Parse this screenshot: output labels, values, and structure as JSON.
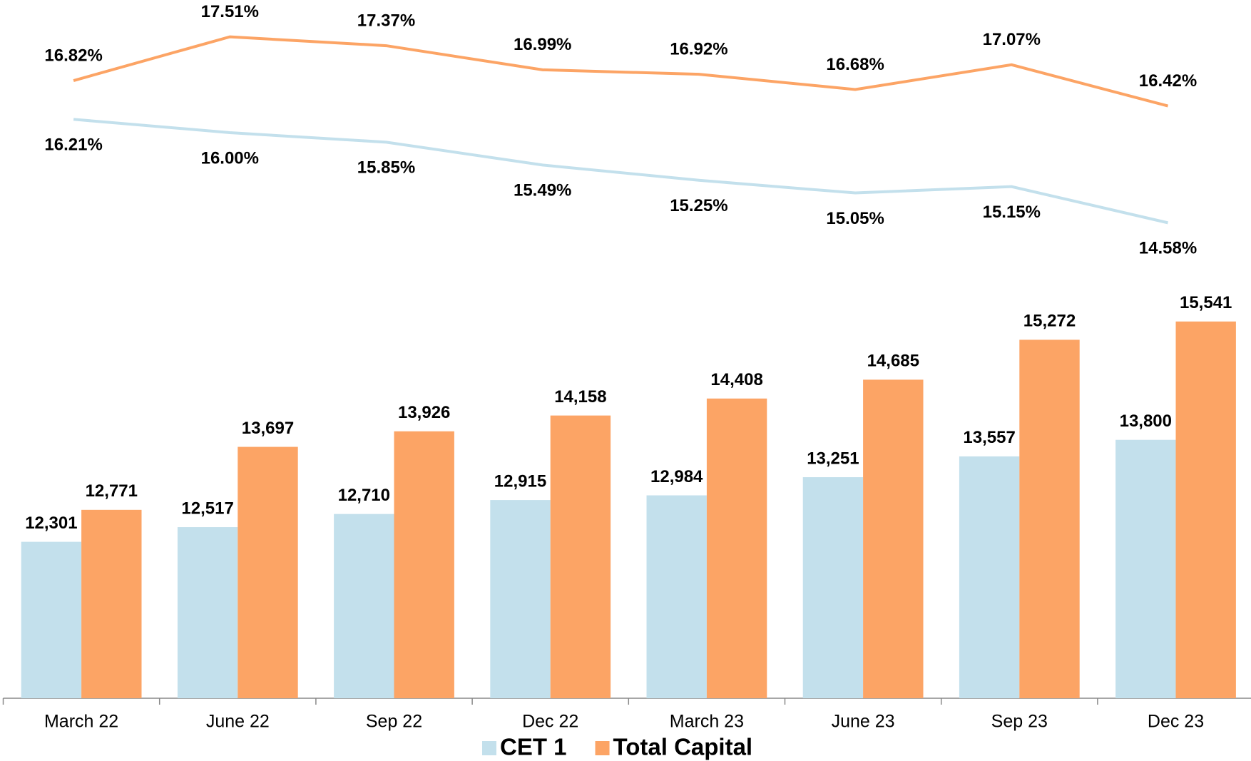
{
  "chart_data": {
    "type": "bar",
    "categories": [
      "March 22",
      "June 22",
      "Sep 22",
      "Dec 22",
      "March 23",
      "June 23",
      "Sep 23",
      "Dec 23"
    ],
    "ylim": [
      10000,
      16000
    ],
    "y2lim": [
      14,
      18
    ],
    "series": [
      {
        "name": "CET 1",
        "type": "bar",
        "color": "#c3e0ec",
        "values": [
          12301,
          12517,
          12710,
          12915,
          12984,
          13251,
          13557,
          13800
        ],
        "value_labels": [
          "12,301",
          "12,517",
          "12,710",
          "12,915",
          "12,984",
          "13,251",
          "13,557",
          "13,800"
        ]
      },
      {
        "name": "Total Capital",
        "type": "bar",
        "color": "#fca465",
        "values": [
          12771,
          13697,
          13926,
          14158,
          14408,
          14685,
          15272,
          15541
        ],
        "value_labels": [
          "12,771",
          "13,697",
          "13,926",
          "14,158",
          "14,408",
          "14,685",
          "15,272",
          "15,541"
        ]
      },
      {
        "type": "line",
        "axis": "y2",
        "color": "#c3e0ec",
        "values": [
          16.21,
          16.0,
          15.85,
          15.49,
          15.25,
          15.05,
          15.15,
          14.58
        ],
        "value_labels": [
          "16.21%",
          "16.00%",
          "15.85%",
          "15.49%",
          "15.25%",
          "15.05%",
          "15.15%",
          "14.58%"
        ]
      },
      {
        "type": "line",
        "axis": "y2",
        "color": "#fca465",
        "values": [
          16.82,
          17.51,
          17.37,
          16.99,
          16.92,
          16.68,
          17.07,
          16.42
        ],
        "value_labels": [
          "16.82%",
          "17.51%",
          "17.37%",
          "16.99%",
          "16.92%",
          "16.68%",
          "17.07%",
          "16.42%"
        ]
      }
    ]
  }
}
